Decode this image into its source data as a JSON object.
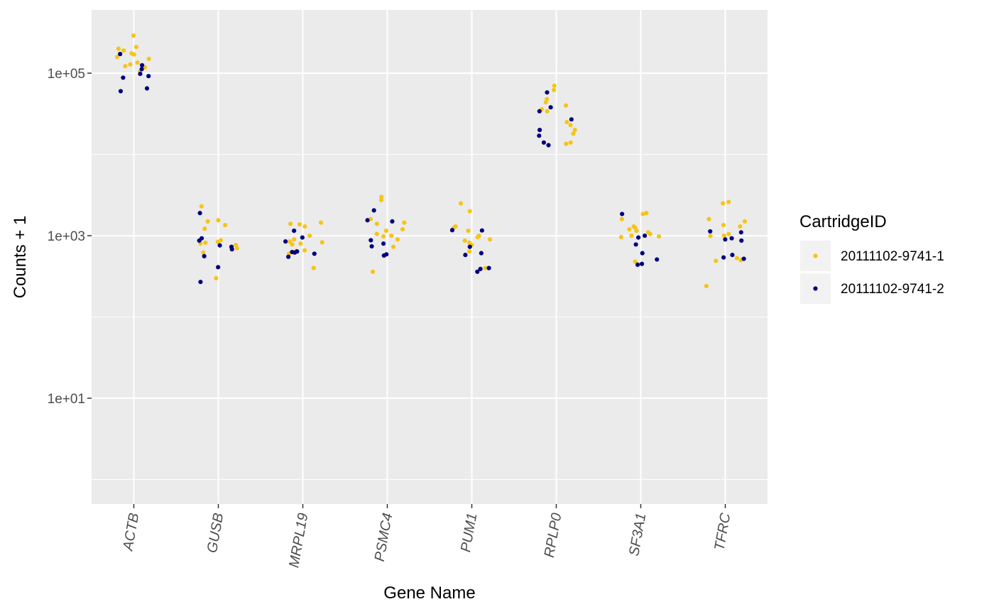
{
  "chart_data": {
    "type": "scatter",
    "xlabel": "Gene Name",
    "ylabel": "Counts + 1",
    "y_scale": "log10",
    "ylim": [
      0.5,
      600000
    ],
    "y_ticks": [
      {
        "value": 10,
        "label": "1e+01"
      },
      {
        "value": 1000,
        "label": "1e+03"
      },
      {
        "value": 100000,
        "label": "1e+05"
      }
    ],
    "grid": true,
    "categories": [
      "ACTB",
      "GUSB",
      "MRPL19",
      "PSMC4",
      "PUM1",
      "RPLP0",
      "SF3A1",
      "TFRC"
    ],
    "legend": {
      "title": "CartridgeID",
      "position": "right"
    },
    "series": [
      {
        "name": "20111102-9741-1",
        "color": "#F5C518",
        "points": [
          {
            "x": "ACTB",
            "y": 290000
          },
          {
            "x": "ACTB",
            "y": 210000
          },
          {
            "x": "ACTB",
            "y": 200000
          },
          {
            "x": "ACTB",
            "y": 190000
          },
          {
            "x": "ACTB",
            "y": 175000
          },
          {
            "x": "ACTB",
            "y": 170000
          },
          {
            "x": "ACTB",
            "y": 158000
          },
          {
            "x": "ACTB",
            "y": 150000
          },
          {
            "x": "ACTB",
            "y": 135000
          },
          {
            "x": "ACTB",
            "y": 128000
          },
          {
            "x": "ACTB",
            "y": 122000
          },
          {
            "x": "ACTB",
            "y": 118000
          },
          {
            "x": "ACTB",
            "y": 105000
          },
          {
            "x": "GUSB",
            "y": 2300
          },
          {
            "x": "GUSB",
            "y": 1550
          },
          {
            "x": "GUSB",
            "y": 1500
          },
          {
            "x": "GUSB",
            "y": 1350
          },
          {
            "x": "GUSB",
            "y": 1220
          },
          {
            "x": "GUSB",
            "y": 880
          },
          {
            "x": "GUSB",
            "y": 840
          },
          {
            "x": "GUSB",
            "y": 820
          },
          {
            "x": "GUSB",
            "y": 800
          },
          {
            "x": "GUSB",
            "y": 770
          },
          {
            "x": "GUSB",
            "y": 700
          },
          {
            "x": "GUSB",
            "y": 620
          },
          {
            "x": "GUSB",
            "y": 300
          },
          {
            "x": "MRPL19",
            "y": 1450
          },
          {
            "x": "MRPL19",
            "y": 1400
          },
          {
            "x": "MRPL19",
            "y": 1380
          },
          {
            "x": "MRPL19",
            "y": 1300
          },
          {
            "x": "MRPL19",
            "y": 1000
          },
          {
            "x": "MRPL19",
            "y": 900
          },
          {
            "x": "MRPL19",
            "y": 850
          },
          {
            "x": "MRPL19",
            "y": 830
          },
          {
            "x": "MRPL19",
            "y": 800
          },
          {
            "x": "MRPL19",
            "y": 780
          },
          {
            "x": "MRPL19",
            "y": 660
          },
          {
            "x": "MRPL19",
            "y": 650
          },
          {
            "x": "MRPL19",
            "y": 600
          },
          {
            "x": "MRPL19",
            "y": 400
          },
          {
            "x": "PSMC4",
            "y": 3000
          },
          {
            "x": "PSMC4",
            "y": 2750
          },
          {
            "x": "PSMC4",
            "y": 1600
          },
          {
            "x": "PSMC4",
            "y": 1450
          },
          {
            "x": "PSMC4",
            "y": 1400
          },
          {
            "x": "PSMC4",
            "y": 1200
          },
          {
            "x": "PSMC4",
            "y": 1150
          },
          {
            "x": "PSMC4",
            "y": 1050
          },
          {
            "x": "PSMC4",
            "y": 1000
          },
          {
            "x": "PSMC4",
            "y": 980
          },
          {
            "x": "PSMC4",
            "y": 900
          },
          {
            "x": "PSMC4",
            "y": 730
          },
          {
            "x": "PSMC4",
            "y": 360
          },
          {
            "x": "PUM1",
            "y": 2500
          },
          {
            "x": "PUM1",
            "y": 2000
          },
          {
            "x": "PUM1",
            "y": 1300
          },
          {
            "x": "PUM1",
            "y": 1250
          },
          {
            "x": "PUM1",
            "y": 1150
          },
          {
            "x": "PUM1",
            "y": 1000
          },
          {
            "x": "PUM1",
            "y": 960
          },
          {
            "x": "PUM1",
            "y": 900
          },
          {
            "x": "PUM1",
            "y": 870
          },
          {
            "x": "PUM1",
            "y": 820
          },
          {
            "x": "PUM1",
            "y": 770
          },
          {
            "x": "PUM1",
            "y": 640
          },
          {
            "x": "PUM1",
            "y": 400
          },
          {
            "x": "RPLP0",
            "y": 70000
          },
          {
            "x": "RPLP0",
            "y": 62000
          },
          {
            "x": "RPLP0",
            "y": 48000
          },
          {
            "x": "RPLP0",
            "y": 44000
          },
          {
            "x": "RPLP0",
            "y": 40000
          },
          {
            "x": "RPLP0",
            "y": 36000
          },
          {
            "x": "RPLP0",
            "y": 34000
          },
          {
            "x": "RPLP0",
            "y": 25000
          },
          {
            "x": "RPLP0",
            "y": 23000
          },
          {
            "x": "RPLP0",
            "y": 20000
          },
          {
            "x": "RPLP0",
            "y": 18000
          },
          {
            "x": "RPLP0",
            "y": 14000
          },
          {
            "x": "RPLP0",
            "y": 13500
          },
          {
            "x": "SF3A1",
            "y": 1900
          },
          {
            "x": "SF3A1",
            "y": 1850
          },
          {
            "x": "SF3A1",
            "y": 1600
          },
          {
            "x": "SF3A1",
            "y": 1300
          },
          {
            "x": "SF3A1",
            "y": 1250
          },
          {
            "x": "SF3A1",
            "y": 1200
          },
          {
            "x": "SF3A1",
            "y": 1150
          },
          {
            "x": "SF3A1",
            "y": 1100
          },
          {
            "x": "SF3A1",
            "y": 1050
          },
          {
            "x": "SF3A1",
            "y": 1000
          },
          {
            "x": "SF3A1",
            "y": 980
          },
          {
            "x": "SF3A1",
            "y": 960
          },
          {
            "x": "SF3A1",
            "y": 480
          },
          {
            "x": "TFRC",
            "y": 2600
          },
          {
            "x": "TFRC",
            "y": 2500
          },
          {
            "x": "TFRC",
            "y": 1600
          },
          {
            "x": "TFRC",
            "y": 1500
          },
          {
            "x": "TFRC",
            "y": 1350
          },
          {
            "x": "TFRC",
            "y": 1300
          },
          {
            "x": "TFRC",
            "y": 1050
          },
          {
            "x": "TFRC",
            "y": 1000
          },
          {
            "x": "TFRC",
            "y": 990
          },
          {
            "x": "TFRC",
            "y": 530
          },
          {
            "x": "TFRC",
            "y": 500
          },
          {
            "x": "TFRC",
            "y": 490
          },
          {
            "x": "TFRC",
            "y": 240
          }
        ]
      },
      {
        "name": "20111102-9741-2",
        "color": "#000080",
        "points": [
          {
            "x": "ACTB",
            "y": 172000
          },
          {
            "x": "ACTB",
            "y": 125000
          },
          {
            "x": "ACTB",
            "y": 112000
          },
          {
            "x": "ACTB",
            "y": 98000
          },
          {
            "x": "ACTB",
            "y": 92000
          },
          {
            "x": "ACTB",
            "y": 88000
          },
          {
            "x": "ACTB",
            "y": 65000
          },
          {
            "x": "ACTB",
            "y": 60000
          },
          {
            "x": "GUSB",
            "y": 1900
          },
          {
            "x": "GUSB",
            "y": 930
          },
          {
            "x": "GUSB",
            "y": 870
          },
          {
            "x": "GUSB",
            "y": 760
          },
          {
            "x": "GUSB",
            "y": 730
          },
          {
            "x": "GUSB",
            "y": 680
          },
          {
            "x": "GUSB",
            "y": 560
          },
          {
            "x": "GUSB",
            "y": 410
          },
          {
            "x": "GUSB",
            "y": 270
          },
          {
            "x": "MRPL19",
            "y": 1150
          },
          {
            "x": "MRPL19",
            "y": 950
          },
          {
            "x": "MRPL19",
            "y": 850
          },
          {
            "x": "MRPL19",
            "y": 640
          },
          {
            "x": "MRPL19",
            "y": 630
          },
          {
            "x": "MRPL19",
            "y": 620
          },
          {
            "x": "MRPL19",
            "y": 600
          },
          {
            "x": "MRPL19",
            "y": 550
          },
          {
            "x": "PSMC4",
            "y": 2050
          },
          {
            "x": "PSMC4",
            "y": 1550
          },
          {
            "x": "PSMC4",
            "y": 1500
          },
          {
            "x": "PSMC4",
            "y": 880
          },
          {
            "x": "PSMC4",
            "y": 800
          },
          {
            "x": "PSMC4",
            "y": 740
          },
          {
            "x": "PSMC4",
            "y": 590
          },
          {
            "x": "PSMC4",
            "y": 570
          },
          {
            "x": "PUM1",
            "y": 1170
          },
          {
            "x": "PUM1",
            "y": 1160
          },
          {
            "x": "PUM1",
            "y": 730
          },
          {
            "x": "PUM1",
            "y": 610
          },
          {
            "x": "PUM1",
            "y": 580
          },
          {
            "x": "PUM1",
            "y": 400
          },
          {
            "x": "PUM1",
            "y": 390
          },
          {
            "x": "PUM1",
            "y": 360
          },
          {
            "x": "RPLP0",
            "y": 58000
          },
          {
            "x": "RPLP0",
            "y": 38000
          },
          {
            "x": "RPLP0",
            "y": 34000
          },
          {
            "x": "RPLP0",
            "y": 27000
          },
          {
            "x": "RPLP0",
            "y": 20000
          },
          {
            "x": "RPLP0",
            "y": 17000
          },
          {
            "x": "RPLP0",
            "y": 14000
          },
          {
            "x": "RPLP0",
            "y": 13000
          },
          {
            "x": "SF3A1",
            "y": 1850
          },
          {
            "x": "SF3A1",
            "y": 1000
          },
          {
            "x": "SF3A1",
            "y": 950
          },
          {
            "x": "SF3A1",
            "y": 780
          },
          {
            "x": "SF3A1",
            "y": 610
          },
          {
            "x": "SF3A1",
            "y": 510
          },
          {
            "x": "SF3A1",
            "y": 450
          },
          {
            "x": "SF3A1",
            "y": 440
          },
          {
            "x": "TFRC",
            "y": 1130
          },
          {
            "x": "TFRC",
            "y": 1100
          },
          {
            "x": "TFRC",
            "y": 930
          },
          {
            "x": "TFRC",
            "y": 900
          },
          {
            "x": "TFRC",
            "y": 870
          },
          {
            "x": "TFRC",
            "y": 580
          },
          {
            "x": "TFRC",
            "y": 540
          },
          {
            "x": "TFRC",
            "y": 520
          }
        ]
      }
    ]
  }
}
